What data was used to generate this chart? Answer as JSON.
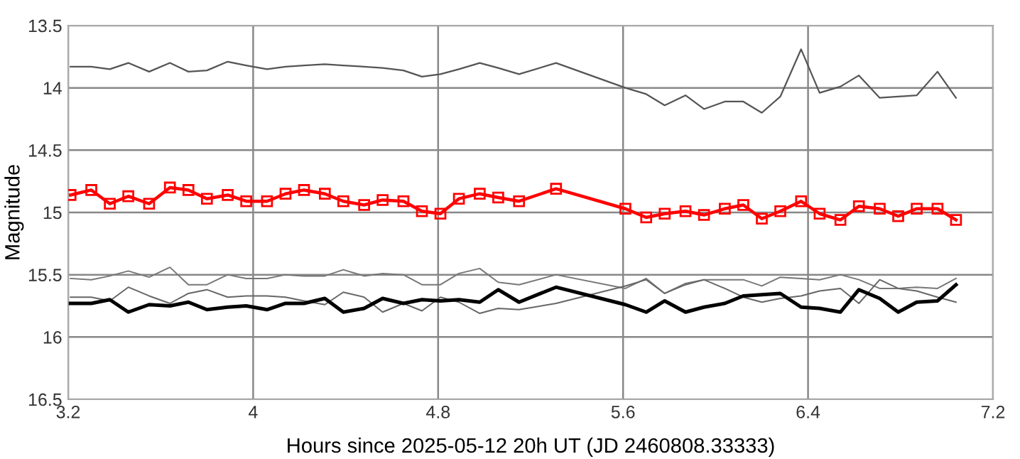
{
  "chart_data": {
    "type": "line",
    "xlabel": "Hours since 2025-05-12 20h UT (JD 2460808.33333)",
    "ylabel": "Magnitude",
    "x": [
      3.21,
      3.3,
      3.38,
      3.46,
      3.55,
      3.64,
      3.72,
      3.8,
      3.89,
      3.97,
      4.06,
      4.14,
      4.22,
      4.31,
      4.39,
      4.48,
      4.56,
      4.65,
      4.73,
      4.81,
      4.89,
      4.98,
      5.06,
      5.15,
      5.31,
      5.61,
      5.7,
      5.78,
      5.87,
      5.95,
      6.04,
      6.12,
      6.2,
      6.28,
      6.37,
      6.45,
      6.54,
      6.62,
      6.71,
      6.79,
      6.87,
      6.96,
      7.04
    ],
    "series": [
      {
        "color": "#555555",
        "values": [
          13.83,
          13.83,
          13.85,
          13.8,
          13.87,
          13.8,
          13.87,
          13.86,
          13.79,
          13.82,
          13.85,
          13.83,
          13.82,
          13.81,
          13.82,
          13.83,
          13.84,
          13.86,
          13.91,
          13.89,
          13.85,
          13.8,
          13.84,
          13.89,
          13.8,
          14.0,
          14.05,
          14.14,
          14.06,
          14.17,
          14.11,
          14.11,
          14.2,
          14.07,
          13.69,
          14.04,
          13.99,
          13.9,
          14.08,
          14.07,
          14.06,
          13.87,
          14.08
        ]
      },
      {
        "color": "#ff0000",
        "marker": "square",
        "values": [
          14.86,
          14.82,
          14.93,
          14.87,
          14.93,
          14.8,
          14.82,
          14.89,
          14.86,
          14.91,
          14.91,
          14.85,
          14.82,
          14.85,
          14.91,
          14.94,
          14.9,
          14.91,
          14.99,
          15.01,
          14.89,
          14.85,
          14.88,
          14.91,
          14.81,
          14.97,
          15.04,
          15.01,
          14.99,
          15.02,
          14.97,
          14.94,
          15.05,
          14.99,
          14.91,
          15.01,
          15.06,
          14.95,
          14.97,
          15.03,
          14.97,
          14.97,
          15.06
        ]
      },
      {
        "color": "#777777",
        "values": [
          15.53,
          15.54,
          15.51,
          15.47,
          15.52,
          15.44,
          15.58,
          15.58,
          15.5,
          15.53,
          15.53,
          15.5,
          15.51,
          15.51,
          15.46,
          15.51,
          15.49,
          15.5,
          15.58,
          15.58,
          15.49,
          15.45,
          15.56,
          15.58,
          15.5,
          15.61,
          15.53,
          15.65,
          15.57,
          15.54,
          15.54,
          15.54,
          15.59,
          15.52,
          15.53,
          15.54,
          15.5,
          15.54,
          15.61,
          15.61,
          15.6,
          15.61,
          15.53
        ]
      },
      {
        "color": "#666666",
        "values": [
          15.68,
          15.68,
          15.71,
          15.6,
          15.67,
          15.73,
          15.65,
          15.62,
          15.68,
          15.67,
          15.67,
          15.68,
          15.71,
          15.74,
          15.64,
          15.68,
          15.8,
          15.73,
          15.79,
          15.68,
          15.72,
          15.81,
          15.77,
          15.78,
          15.73,
          15.59,
          15.54,
          15.65,
          15.58,
          15.54,
          15.61,
          15.68,
          15.72,
          15.69,
          15.67,
          15.63,
          15.61,
          15.73,
          15.54,
          15.61,
          15.63,
          15.68,
          15.72
        ]
      },
      {
        "color": "#000000",
        "values": [
          15.73,
          15.73,
          15.7,
          15.8,
          15.74,
          15.75,
          15.72,
          15.78,
          15.76,
          15.75,
          15.78,
          15.73,
          15.73,
          15.69,
          15.8,
          15.77,
          15.69,
          15.73,
          15.7,
          15.71,
          15.7,
          15.72,
          15.62,
          15.72,
          15.6,
          15.74,
          15.8,
          15.71,
          15.8,
          15.76,
          15.73,
          15.67,
          15.66,
          15.65,
          15.76,
          15.77,
          15.8,
          15.62,
          15.69,
          15.8,
          15.72,
          15.71,
          15.58
        ]
      }
    ],
    "xlim": [
      3.2,
      7.2
    ],
    "xticks": [
      3.2,
      4,
      4.8,
      5.6,
      6.4,
      7.2
    ],
    "ylim": [
      16.5,
      13.5
    ],
    "yticks": [
      13.5,
      14,
      14.5,
      15,
      15.5,
      16,
      16.5
    ],
    "grid": true
  }
}
